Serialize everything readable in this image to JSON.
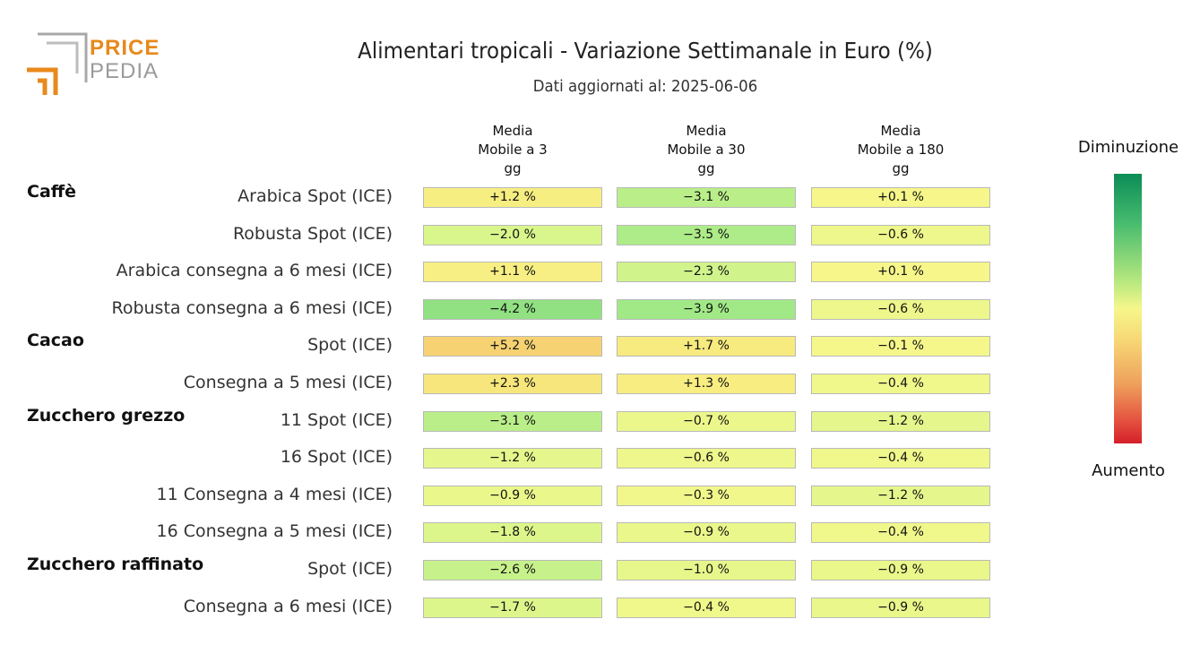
{
  "logo": {
    "word1": "PRICE",
    "word2": "PEDIA"
  },
  "chart_data": {
    "type": "table",
    "title": "Alimentari tropicali - Variazione Settimanale in Euro (%)",
    "subtitle": "Dati aggiornati al: 2025-06-06",
    "columns": [
      "Media\nMobile a 3\ngg",
      "Media\nMobile a 30\ngg",
      "Media\nMobile a 180\ngg"
    ],
    "legend": {
      "top": "Diminuzione",
      "bottom": "Aumento"
    },
    "groups": [
      {
        "name": "Caffè",
        "rows": [
          {
            "label": "Arabica Spot (ICE)",
            "values": [
              1.2,
              -3.1,
              0.1
            ]
          },
          {
            "label": "Robusta Spot (ICE)",
            "values": [
              -2.0,
              -3.5,
              -0.6
            ]
          },
          {
            "label": "Arabica consegna a 6 mesi (ICE)",
            "values": [
              1.1,
              -2.3,
              0.1
            ]
          },
          {
            "label": "Robusta consegna a 6 mesi (ICE)",
            "values": [
              -4.2,
              -3.9,
              -0.6
            ]
          }
        ]
      },
      {
        "name": "Cacao",
        "rows": [
          {
            "label": "Spot (ICE)",
            "values": [
              5.2,
              1.7,
              -0.1
            ]
          },
          {
            "label": "Consegna a 5 mesi (ICE)",
            "values": [
              2.3,
              1.3,
              -0.4
            ]
          }
        ]
      },
      {
        "name": "Zucchero grezzo",
        "rows": [
          {
            "label": "11 Spot (ICE)",
            "values": [
              -3.1,
              -0.7,
              -1.2
            ]
          },
          {
            "label": "16 Spot (ICE)",
            "values": [
              -1.2,
              -0.6,
              -0.4
            ]
          },
          {
            "label": "11 Consegna a 4 mesi (ICE)",
            "values": [
              -0.9,
              -0.3,
              -1.2
            ]
          },
          {
            "label": "16 Consegna a 5 mesi (ICE)",
            "values": [
              -1.8,
              -0.9,
              -0.4
            ]
          }
        ]
      },
      {
        "name": "Zucchero raffinato",
        "rows": [
          {
            "label": "Spot (ICE)",
            "values": [
              -2.6,
              -1.0,
              -0.9
            ]
          },
          {
            "label": "Consegna a 6 mesi (ICE)",
            "values": [
              -1.7,
              -0.4,
              -0.9
            ]
          }
        ]
      }
    ]
  }
}
